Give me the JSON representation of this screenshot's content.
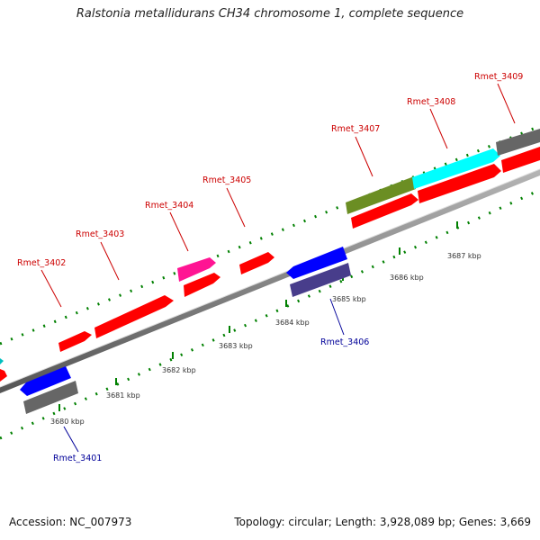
{
  "title": "Ralstonia metallidurans CH34 chromosome 1, complete sequence",
  "footer": {
    "accession": "Accession: NC_007973",
    "summary": "Topology: circular; Length: 3,928,089 bp; Genes: 3,669"
  },
  "colors": {
    "forward_gene": "#ff0000",
    "reverse_gene": "#0000ff",
    "gray_gene": "#666666",
    "cyan_gene": "#00ffff",
    "olive_gene": "#6b8e23",
    "magenta_gene": "#ff1493",
    "slate_gene": "#483d8b",
    "tick": "#008000",
    "forward_label": "#cc0000",
    "reverse_label": "#000099"
  },
  "ticks": [
    "3680 kbp",
    "3681 kbp",
    "3682 kbp",
    "3683 kbp",
    "3684 kbp",
    "3685 kbp",
    "3686 kbp",
    "3687 kbp"
  ],
  "gene_labels": {
    "forward": [
      "Rmet_3402",
      "Rmet_3403",
      "Rmet_3404",
      "Rmet_3405",
      "Rmet_3407",
      "Rmet_3408",
      "Rmet_3409"
    ],
    "reverse": [
      "Rmet_3401",
      "Rmet_3406"
    ]
  }
}
